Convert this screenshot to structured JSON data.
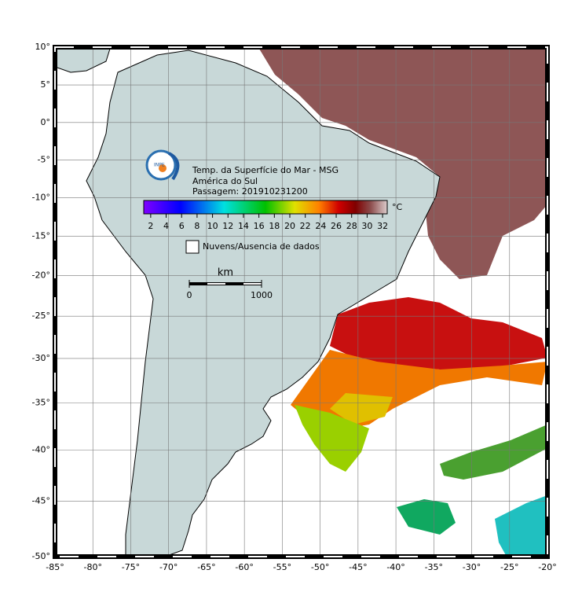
{
  "map": {
    "title_lines": [
      "Temp. da Superfície do Mar - MSG",
      "América do Sul",
      "Passagem: 201910231200"
    ],
    "projection": "mercator",
    "xlim": [
      -85,
      -20
    ],
    "ylim": [
      -50,
      10
    ],
    "xticks": [
      {
        "value": -85,
        "label": "-85°"
      },
      {
        "value": -80,
        "label": "-80°"
      },
      {
        "value": -75,
        "label": "-75°"
      },
      {
        "value": -70,
        "label": "-70°"
      },
      {
        "value": -65,
        "label": "-65°"
      },
      {
        "value": -60,
        "label": "-60°"
      },
      {
        "value": -55,
        "label": "-55°"
      },
      {
        "value": -50,
        "label": "-50°"
      },
      {
        "value": -45,
        "label": "-45°"
      },
      {
        "value": -40,
        "label": "-40°"
      },
      {
        "value": -35,
        "label": "-35°"
      },
      {
        "value": -30,
        "label": "-30°"
      },
      {
        "value": -25,
        "label": "-25°"
      },
      {
        "value": -20,
        "label": "-20°"
      }
    ],
    "yticks": [
      {
        "value": 10,
        "label": "10°"
      },
      {
        "value": 5,
        "label": "5°"
      },
      {
        "value": 0,
        "label": "0°"
      },
      {
        "value": -5,
        "label": "-5°"
      },
      {
        "value": -10,
        "label": "-10°"
      },
      {
        "value": -15,
        "label": "-15°"
      },
      {
        "value": -20,
        "label": "-20°"
      },
      {
        "value": -25,
        "label": "-25°"
      },
      {
        "value": -30,
        "label": "-30°"
      },
      {
        "value": -35,
        "label": "-35°"
      },
      {
        "value": -40,
        "label": "-40°"
      },
      {
        "value": -45,
        "label": "-45°"
      },
      {
        "value": -50,
        "label": "-50°"
      }
    ]
  },
  "colorbar": {
    "unit": "°C",
    "range": [
      1.1,
      32.6
    ],
    "ticks": [
      2,
      4,
      6,
      8,
      10,
      12,
      14,
      16,
      18,
      20,
      22,
      24,
      26,
      28,
      30,
      32
    ]
  },
  "legend": {
    "no_data": "Nuvens/Ausencia de dados"
  },
  "scale_bar": {
    "unit": "km",
    "ticks": [
      0,
      1000
    ]
  },
  "logo": {
    "text": "INPE"
  }
}
